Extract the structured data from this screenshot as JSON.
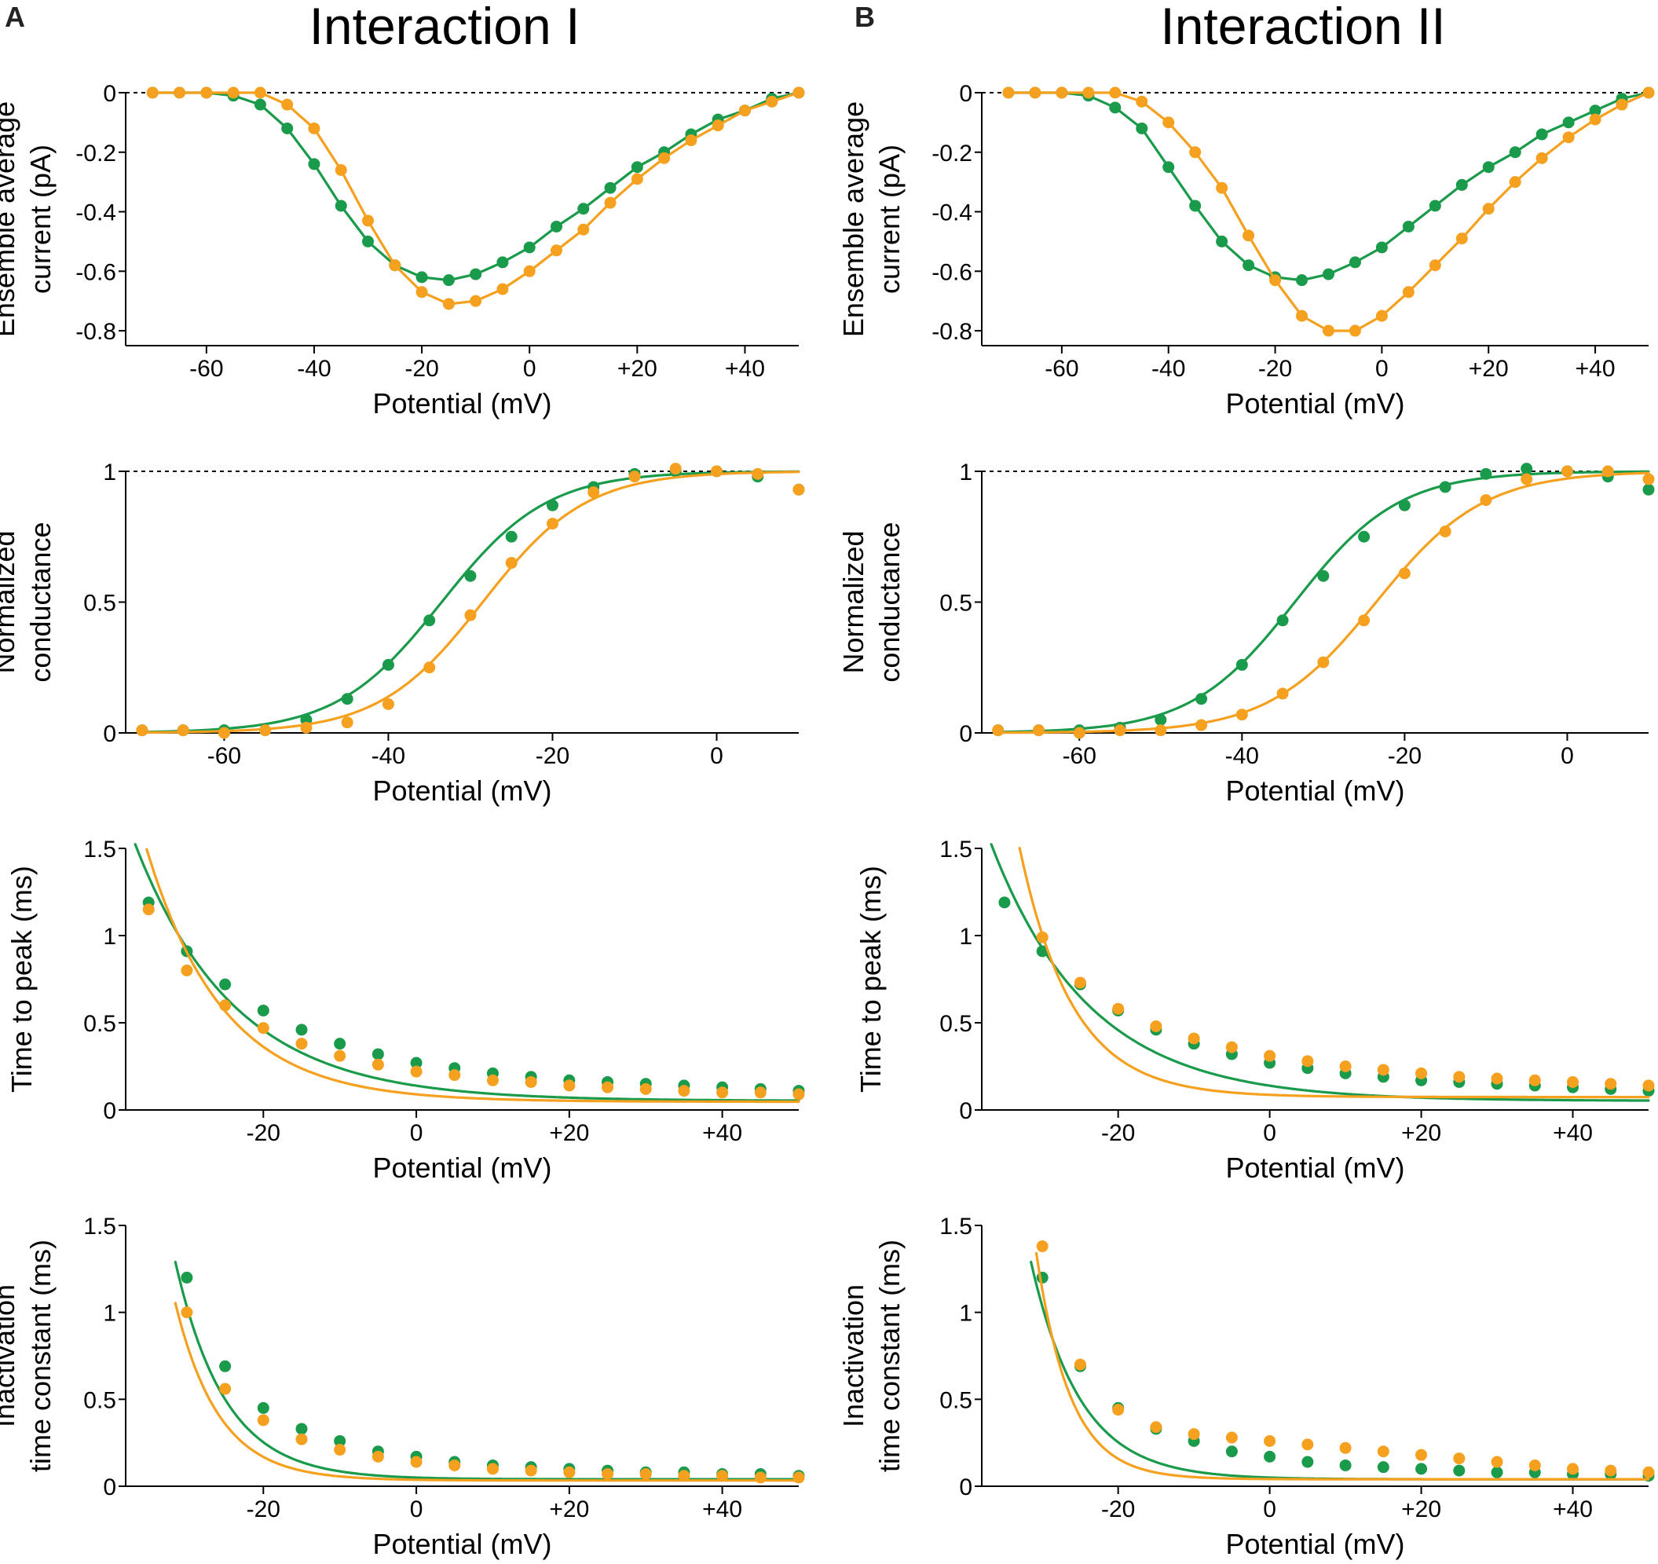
{
  "figure": {
    "panel_letters": [
      "A",
      "B"
    ],
    "column_titles": [
      "Interaction I",
      "Interaction II"
    ]
  },
  "colors": {
    "green": "#1a9a4b",
    "orange": "#f5a01e"
  },
  "series_names": [
    "green",
    "orange"
  ],
  "chart_data": [
    {
      "type": "line",
      "column": 0,
      "row": 0,
      "title": "",
      "xlabel": "Potential (mV)",
      "ylabel": [
        "Ensemble average",
        "current (pA)"
      ],
      "xlim": [
        -75,
        50
      ],
      "ylim": [
        -0.85,
        0
      ],
      "xticks": [
        -60,
        -40,
        -20,
        0,
        20,
        40
      ],
      "xtick_labels": [
        "-60",
        "-40",
        "-20",
        "0",
        "+20",
        "+40"
      ],
      "yticks": [
        0,
        -0.2,
        -0.4,
        -0.6,
        -0.8
      ],
      "ytick_labels": [
        "0",
        "-0.2",
        "-0.4",
        "-0.6",
        "-0.8"
      ],
      "ref_line_y": 0,
      "x": [
        -70,
        -65,
        -60,
        -55,
        -50,
        -45,
        -40,
        -35,
        -30,
        -25,
        -20,
        -15,
        -10,
        -5,
        0,
        5,
        10,
        15,
        20,
        25,
        30,
        35,
        40,
        45,
        50
      ],
      "series": [
        {
          "name": "green",
          "values": [
            0,
            0,
            0,
            -0.01,
            -0.04,
            -0.12,
            -0.24,
            -0.38,
            -0.5,
            -0.58,
            -0.62,
            -0.63,
            -0.61,
            -0.57,
            -0.52,
            -0.45,
            -0.39,
            -0.32,
            -0.25,
            -0.2,
            -0.14,
            -0.09,
            -0.06,
            -0.02,
            0
          ]
        },
        {
          "name": "orange",
          "values": [
            0,
            0,
            0,
            0,
            0,
            -0.04,
            -0.12,
            -0.26,
            -0.43,
            -0.58,
            -0.67,
            -0.71,
            -0.7,
            -0.66,
            -0.6,
            -0.53,
            -0.46,
            -0.37,
            -0.29,
            -0.22,
            -0.16,
            -0.11,
            -0.06,
            -0.03,
            0
          ]
        }
      ]
    },
    {
      "type": "line",
      "column": 1,
      "row": 0,
      "title": "",
      "xlabel": "Potential (mV)",
      "ylabel": [
        "Ensemble average",
        "current (pA)"
      ],
      "xlim": [
        -75,
        50
      ],
      "ylim": [
        -0.85,
        0
      ],
      "xticks": [
        -60,
        -40,
        -20,
        0,
        20,
        40
      ],
      "xtick_labels": [
        "-60",
        "-40",
        "-20",
        "0",
        "+20",
        "+40"
      ],
      "yticks": [
        0,
        -0.2,
        -0.4,
        -0.6,
        -0.8
      ],
      "ytick_labels": [
        "0",
        "-0.2",
        "-0.4",
        "-0.6",
        "-0.8"
      ],
      "ref_line_y": 0,
      "x": [
        -70,
        -65,
        -60,
        -55,
        -50,
        -45,
        -40,
        -35,
        -30,
        -25,
        -20,
        -15,
        -10,
        -5,
        0,
        5,
        10,
        15,
        20,
        25,
        30,
        35,
        40,
        45,
        50
      ],
      "series": [
        {
          "name": "green",
          "values": [
            0,
            0,
            0,
            -0.01,
            -0.05,
            -0.12,
            -0.25,
            -0.38,
            -0.5,
            -0.58,
            -0.62,
            -0.63,
            -0.61,
            -0.57,
            -0.52,
            -0.45,
            -0.38,
            -0.31,
            -0.25,
            -0.2,
            -0.14,
            -0.1,
            -0.06,
            -0.02,
            0
          ]
        },
        {
          "name": "orange",
          "values": [
            0,
            0,
            0,
            0,
            0,
            -0.03,
            -0.1,
            -0.2,
            -0.32,
            -0.48,
            -0.63,
            -0.75,
            -0.8,
            -0.8,
            -0.75,
            -0.67,
            -0.58,
            -0.49,
            -0.39,
            -0.3,
            -0.22,
            -0.15,
            -0.09,
            -0.04,
            0
          ]
        }
      ]
    },
    {
      "type": "line",
      "column": 0,
      "row": 1,
      "title": "",
      "xlabel": "Potential (mV)",
      "ylabel": [
        "Normalized",
        "conductance"
      ],
      "xlim": [
        -72,
        10
      ],
      "ylim": [
        0,
        1
      ],
      "xticks": [
        -60,
        -40,
        -20,
        0
      ],
      "xtick_labels": [
        "-60",
        "-40",
        "-20",
        "0"
      ],
      "yticks": [
        0,
        0.5,
        1
      ],
      "ytick_labels": [
        "0",
        "0.5",
        "1"
      ],
      "ref_line_y": 1,
      "x": [
        -70,
        -65,
        -60,
        -55,
        -50,
        -45,
        -40,
        -35,
        -30,
        -25,
        -20,
        -15,
        -10,
        -5,
        0,
        5,
        10
      ],
      "series": [
        {
          "name": "green",
          "values": [
            0.01,
            0.01,
            0.01,
            0.01,
            0.05,
            0.13,
            0.26,
            0.43,
            0.6,
            0.75,
            0.87,
            0.94,
            0.99,
            1.0,
            1.0,
            0.98,
            0.93
          ],
          "fit": {
            "v_half": -33.5,
            "k": 6.4
          }
        },
        {
          "name": "orange",
          "values": [
            0.01,
            0.01,
            0.0,
            0.01,
            0.02,
            0.04,
            0.11,
            0.25,
            0.45,
            0.65,
            0.8,
            0.92,
            0.98,
            1.01,
            1.0,
            0.99,
            0.93
          ],
          "fit": {
            "v_half": -28.5,
            "k": 6.3
          }
        }
      ]
    },
    {
      "type": "line",
      "column": 1,
      "row": 1,
      "title": "",
      "xlabel": "Potential (mV)",
      "ylabel": [
        "Normalized",
        "conductance"
      ],
      "xlim": [
        -72,
        10
      ],
      "ylim": [
        0,
        1
      ],
      "xticks": [
        -60,
        -40,
        -20,
        0
      ],
      "xtick_labels": [
        "-60",
        "-40",
        "-20",
        "0"
      ],
      "yticks": [
        0,
        0.5,
        1
      ],
      "ytick_labels": [
        "0",
        "0.5",
        "1"
      ],
      "ref_line_y": 1,
      "x": [
        -70,
        -65,
        -60,
        -55,
        -50,
        -45,
        -40,
        -35,
        -30,
        -25,
        -20,
        -15,
        -10,
        -5,
        0,
        5,
        10
      ],
      "series": [
        {
          "name": "green",
          "values": [
            0.01,
            0.01,
            0.01,
            0.02,
            0.05,
            0.13,
            0.26,
            0.43,
            0.6,
            0.75,
            0.87,
            0.94,
            0.99,
            1.01,
            1.0,
            0.98,
            0.93
          ],
          "fit": {
            "v_half": -33.5,
            "k": 6.4
          }
        },
        {
          "name": "orange",
          "values": [
            0.01,
            0.01,
            0.0,
            0.01,
            0.01,
            0.03,
            0.07,
            0.15,
            0.27,
            0.43,
            0.61,
            0.77,
            0.89,
            0.97,
            1.0,
            1.0,
            0.97
          ],
          "fit": {
            "v_half": -23.5,
            "k": 6.6
          }
        }
      ]
    },
    {
      "type": "line",
      "column": 0,
      "row": 2,
      "title": "",
      "xlabel": "Potential (mV)",
      "ylabel": [
        "Time to peak (ms)"
      ],
      "xlim": [
        -38,
        50
      ],
      "ylim": [
        0,
        1.5
      ],
      "xticks": [
        -20,
        0,
        20,
        40
      ],
      "xtick_labels": [
        "-20",
        "0",
        "+20",
        "+40"
      ],
      "yticks": [
        0,
        0.5,
        1,
        1.5
      ],
      "ytick_labels": [
        "0",
        "0.5",
        "1",
        "1.5"
      ],
      "ref_line_y": null,
      "x": [
        -35,
        -30,
        -25,
        -20,
        -15,
        -10,
        -5,
        0,
        5,
        10,
        15,
        20,
        25,
        30,
        35,
        40,
        45,
        50
      ],
      "series": [
        {
          "name": "green",
          "values": [
            1.19,
            0.91,
            0.72,
            0.57,
            0.46,
            0.38,
            0.32,
            0.27,
            0.24,
            0.21,
            0.19,
            0.17,
            0.16,
            0.15,
            0.14,
            0.13,
            0.12,
            0.11
          ],
          "fit": {
            "a": 0.052,
            "b": 1.5,
            "tau": 13.0,
            "start": -37
          }
        },
        {
          "name": "orange",
          "values": [
            1.15,
            0.8,
            0.6,
            0.47,
            0.38,
            0.31,
            0.26,
            0.22,
            0.2,
            0.17,
            0.16,
            0.14,
            0.13,
            0.12,
            0.11,
            0.1,
            0.1,
            0.09
          ],
          "fit": {
            "a": 0.047,
            "b": 1.725,
            "tau": 10.0,
            "start": -37
          }
        }
      ]
    },
    {
      "type": "line",
      "column": 1,
      "row": 2,
      "title": "",
      "xlabel": "Potential (mV)",
      "ylabel": [
        "Time to peak (ms)"
      ],
      "xlim": [
        -38,
        50
      ],
      "ylim": [
        0,
        1.5
      ],
      "xticks": [
        -20,
        0,
        20,
        40
      ],
      "xtick_labels": [
        "-20",
        "0",
        "+20",
        "+40"
      ],
      "yticks": [
        0,
        0.5,
        1,
        1.5
      ],
      "ytick_labels": [
        "0",
        "0.5",
        "1",
        "1.5"
      ],
      "ref_line_y": null,
      "x": [
        -35,
        -30,
        -25,
        -20,
        -15,
        -10,
        -5,
        0,
        5,
        10,
        15,
        20,
        25,
        30,
        35,
        40,
        45,
        50
      ],
      "series": [
        {
          "name": "green",
          "values": [
            1.19,
            0.91,
            0.72,
            0.57,
            0.46,
            0.38,
            0.32,
            0.27,
            0.24,
            0.21,
            0.19,
            0.17,
            0.16,
            0.15,
            0.14,
            0.13,
            0.12,
            0.11
          ],
          "fit": {
            "a": 0.052,
            "b": 1.5,
            "tau": 13.0,
            "start": -37
          }
        },
        {
          "name": "orange",
          "values": [
            null,
            0.99,
            0.73,
            0.58,
            0.48,
            0.41,
            0.36,
            0.31,
            0.28,
            0.25,
            0.23,
            0.21,
            0.19,
            0.18,
            0.17,
            0.16,
            0.15,
            0.14
          ],
          "fit": {
            "a": 0.074,
            "b": 1.9,
            "tau": 7.0,
            "start": -35
          }
        }
      ]
    },
    {
      "type": "line",
      "column": 0,
      "row": 3,
      "title": "",
      "xlabel": "Potential (mV)",
      "ylabel": [
        "Inactivation",
        "time constant (ms)"
      ],
      "xlim": [
        -38,
        50
      ],
      "ylim": [
        0,
        1.5
      ],
      "xticks": [
        -20,
        0,
        20,
        40
      ],
      "xtick_labels": [
        "-20",
        "0",
        "+20",
        "+40"
      ],
      "yticks": [
        0,
        0.5,
        1,
        1.5
      ],
      "ytick_labels": [
        "0",
        "0.5",
        "1",
        "1.5"
      ],
      "ref_line_y": null,
      "x": [
        -30,
        -25,
        -20,
        -15,
        -10,
        -5,
        0,
        5,
        10,
        15,
        20,
        25,
        30,
        35,
        40,
        45,
        50
      ],
      "series": [
        {
          "name": "green",
          "values": [
            1.2,
            0.69,
            0.45,
            0.33,
            0.26,
            0.2,
            0.17,
            0.14,
            0.12,
            0.11,
            0.1,
            0.09,
            0.08,
            0.08,
            0.07,
            0.07,
            0.06
          ],
          "fit": {
            "a": 0.04,
            "b": 1.25,
            "tau": 6.5,
            "start": -31.5
          }
        },
        {
          "name": "orange",
          "values": [
            1.0,
            0.56,
            0.38,
            0.27,
            0.21,
            0.17,
            0.14,
            0.12,
            0.1,
            0.09,
            0.08,
            0.07,
            0.07,
            0.06,
            0.06,
            0.05,
            0.05
          ],
          "fit": {
            "a": 0.033,
            "b": 1.02,
            "tau": 5.7,
            "start": -31.5
          }
        }
      ]
    },
    {
      "type": "line",
      "column": 1,
      "row": 3,
      "title": "",
      "xlabel": "Potential (mV)",
      "ylabel": [
        "Inactivation",
        "time constant (ms)"
      ],
      "xlim": [
        -38,
        50
      ],
      "ylim": [
        0,
        1.5
      ],
      "xticks": [
        -20,
        0,
        20,
        40
      ],
      "xtick_labels": [
        "-20",
        "0",
        "+20",
        "+40"
      ],
      "yticks": [
        0,
        0.5,
        1,
        1.5
      ],
      "ytick_labels": [
        "0",
        "0.5",
        "1",
        "1.5"
      ],
      "ref_line_y": null,
      "x": [
        -30,
        -25,
        -20,
        -15,
        -10,
        -5,
        0,
        5,
        10,
        15,
        20,
        25,
        30,
        35,
        40,
        45,
        50
      ],
      "series": [
        {
          "name": "green",
          "values": [
            1.2,
            0.69,
            0.45,
            0.33,
            0.26,
            0.2,
            0.17,
            0.14,
            0.12,
            0.11,
            0.1,
            0.09,
            0.08,
            0.08,
            0.07,
            0.07,
            0.06
          ],
          "fit": {
            "a": 0.04,
            "b": 1.25,
            "tau": 6.5,
            "start": -31.5
          }
        },
        {
          "name": "orange",
          "values": [
            1.38,
            0.7,
            0.44,
            0.34,
            0.3,
            0.28,
            0.26,
            0.24,
            0.22,
            0.2,
            0.18,
            0.16,
            0.14,
            0.12,
            0.1,
            0.09,
            0.08
          ],
          "fit": {
            "a": 0.04,
            "b": 1.3,
            "tau": 4.5,
            "start": -30.8
          }
        }
      ]
    }
  ]
}
